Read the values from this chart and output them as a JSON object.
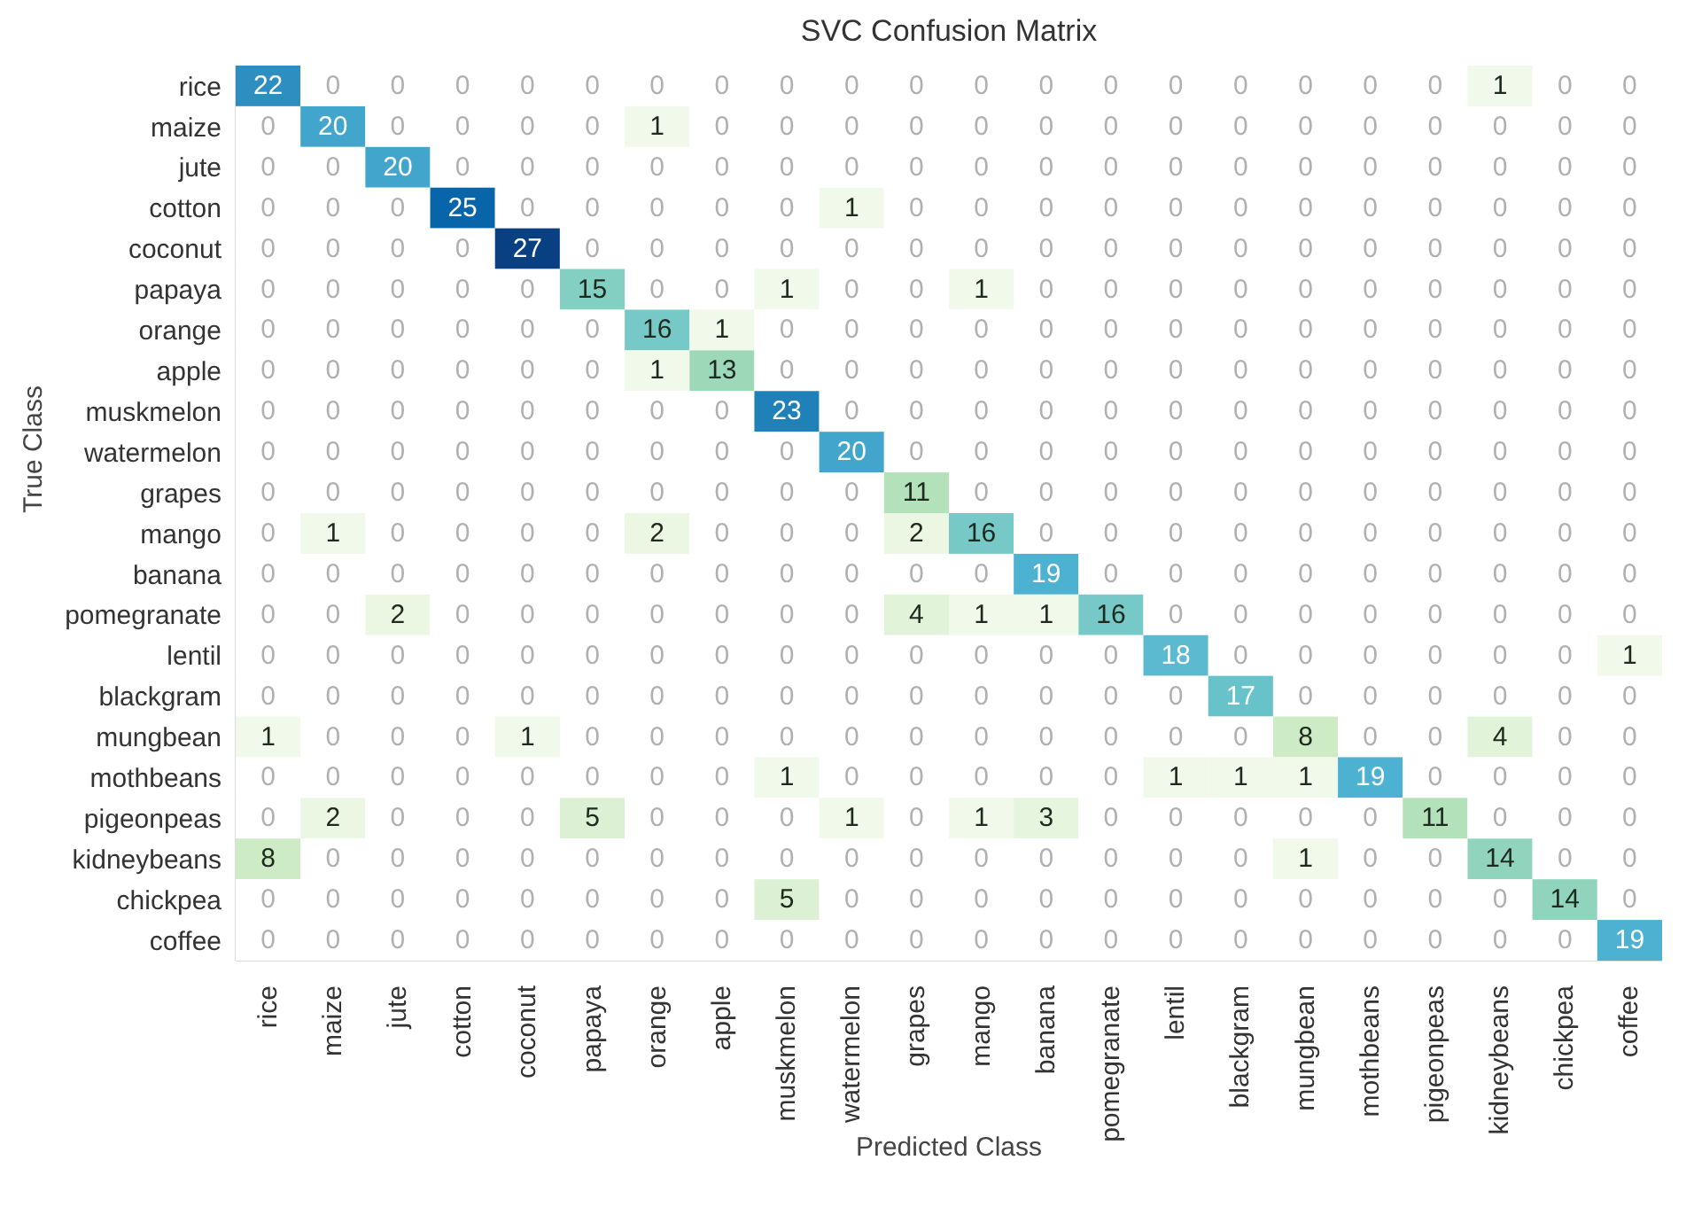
{
  "chart_data": {
    "type": "heatmap",
    "title": "SVC Confusion Matrix",
    "xlabel": "Predicted Class",
    "ylabel": "True Class",
    "categories": [
      "rice",
      "maize",
      "jute",
      "cotton",
      "coconut",
      "papaya",
      "orange",
      "apple",
      "muskmelon",
      "watermelon",
      "grapes",
      "mango",
      "banana",
      "pomegranate",
      "lentil",
      "blackgram",
      "mungbean",
      "mothbeans",
      "pigeonpeas",
      "kidneybeans",
      "chickpea",
      "coffee"
    ],
    "y_categories": [
      "rice",
      "maize",
      "jute",
      "cotton",
      "coconut",
      "papaya",
      "orange",
      "apple",
      "muskmelon",
      "watermelon",
      "grapes",
      "mango",
      "banana",
      "pomegranate",
      "lentil",
      "blackgram",
      "mungbean",
      "mothbeans",
      "pigeonpeas",
      "kidneybeans",
      "chickpea",
      "coffee"
    ],
    "cells": [
      [
        22,
        0,
        0,
        0,
        0,
        0,
        0,
        0,
        0,
        0,
        0,
        0,
        0,
        0,
        0,
        0,
        0,
        0,
        0,
        1,
        0,
        0
      ],
      [
        0,
        20,
        0,
        0,
        0,
        0,
        1,
        0,
        0,
        0,
        0,
        0,
        0,
        0,
        0,
        0,
        0,
        0,
        0,
        0,
        0,
        0
      ],
      [
        0,
        0,
        20,
        0,
        0,
        0,
        0,
        0,
        0,
        0,
        0,
        0,
        0,
        0,
        0,
        0,
        0,
        0,
        0,
        0,
        0,
        0
      ],
      [
        0,
        0,
        0,
        25,
        0,
        0,
        0,
        0,
        0,
        1,
        0,
        0,
        0,
        0,
        0,
        0,
        0,
        0,
        0,
        0,
        0,
        0
      ],
      [
        0,
        0,
        0,
        0,
        27,
        0,
        0,
        0,
        0,
        0,
        0,
        0,
        0,
        0,
        0,
        0,
        0,
        0,
        0,
        0,
        0,
        0
      ],
      [
        0,
        0,
        0,
        0,
        0,
        15,
        0,
        0,
        1,
        0,
        0,
        1,
        0,
        0,
        0,
        0,
        0,
        0,
        0,
        0,
        0,
        0
      ],
      [
        0,
        0,
        0,
        0,
        0,
        0,
        16,
        1,
        0,
        0,
        0,
        0,
        0,
        0,
        0,
        0,
        0,
        0,
        0,
        0,
        0,
        0
      ],
      [
        0,
        0,
        0,
        0,
        0,
        0,
        1,
        13,
        0,
        0,
        0,
        0,
        0,
        0,
        0,
        0,
        0,
        0,
        0,
        0,
        0,
        0
      ],
      [
        0,
        0,
        0,
        0,
        0,
        0,
        0,
        0,
        23,
        0,
        0,
        0,
        0,
        0,
        0,
        0,
        0,
        0,
        0,
        0,
        0,
        0
      ],
      [
        0,
        0,
        0,
        0,
        0,
        0,
        0,
        0,
        0,
        20,
        0,
        0,
        0,
        0,
        0,
        0,
        0,
        0,
        0,
        0,
        0,
        0
      ],
      [
        0,
        0,
        0,
        0,
        0,
        0,
        0,
        0,
        0,
        0,
        11,
        0,
        0,
        0,
        0,
        0,
        0,
        0,
        0,
        0,
        0,
        0
      ],
      [
        0,
        1,
        0,
        0,
        0,
        0,
        2,
        0,
        0,
        0,
        2,
        16,
        0,
        0,
        0,
        0,
        0,
        0,
        0,
        0,
        0,
        0
      ],
      [
        0,
        0,
        0,
        0,
        0,
        0,
        0,
        0,
        0,
        0,
        0,
        0,
        19,
        0,
        0,
        0,
        0,
        0,
        0,
        0,
        0,
        0
      ],
      [
        0,
        0,
        2,
        0,
        0,
        0,
        0,
        0,
        0,
        0,
        4,
        1,
        1,
        16,
        0,
        0,
        0,
        0,
        0,
        0,
        0,
        0
      ],
      [
        0,
        0,
        0,
        0,
        0,
        0,
        0,
        0,
        0,
        0,
        0,
        0,
        0,
        0,
        18,
        0,
        0,
        0,
        0,
        0,
        0,
        1
      ],
      [
        0,
        0,
        0,
        0,
        0,
        0,
        0,
        0,
        0,
        0,
        0,
        0,
        0,
        0,
        0,
        17,
        0,
        0,
        0,
        0,
        0,
        0
      ],
      [
        1,
        0,
        0,
        0,
        1,
        0,
        0,
        0,
        0,
        0,
        0,
        0,
        0,
        0,
        0,
        0,
        8,
        0,
        0,
        4,
        0,
        0
      ],
      [
        0,
        0,
        0,
        0,
        0,
        0,
        0,
        0,
        1,
        0,
        0,
        0,
        0,
        0,
        1,
        1,
        1,
        19,
        0,
        0,
        0,
        0
      ],
      [
        0,
        2,
        0,
        0,
        0,
        5,
        0,
        0,
        0,
        1,
        0,
        1,
        3,
        0,
        0,
        0,
        0,
        0,
        11,
        0,
        0,
        0
      ],
      [
        8,
        0,
        0,
        0,
        0,
        0,
        0,
        0,
        0,
        0,
        0,
        0,
        0,
        0,
        0,
        0,
        1,
        0,
        0,
        14,
        0,
        0
      ],
      [
        0,
        0,
        0,
        0,
        0,
        0,
        0,
        0,
        5,
        0,
        0,
        0,
        0,
        0,
        0,
        0,
        0,
        0,
        0,
        0,
        14,
        0
      ],
      [
        0,
        0,
        0,
        0,
        0,
        0,
        0,
        0,
        0,
        0,
        0,
        0,
        0,
        0,
        0,
        0,
        0,
        0,
        0,
        0,
        0,
        19
      ]
    ],
    "data_labels": true
  }
}
